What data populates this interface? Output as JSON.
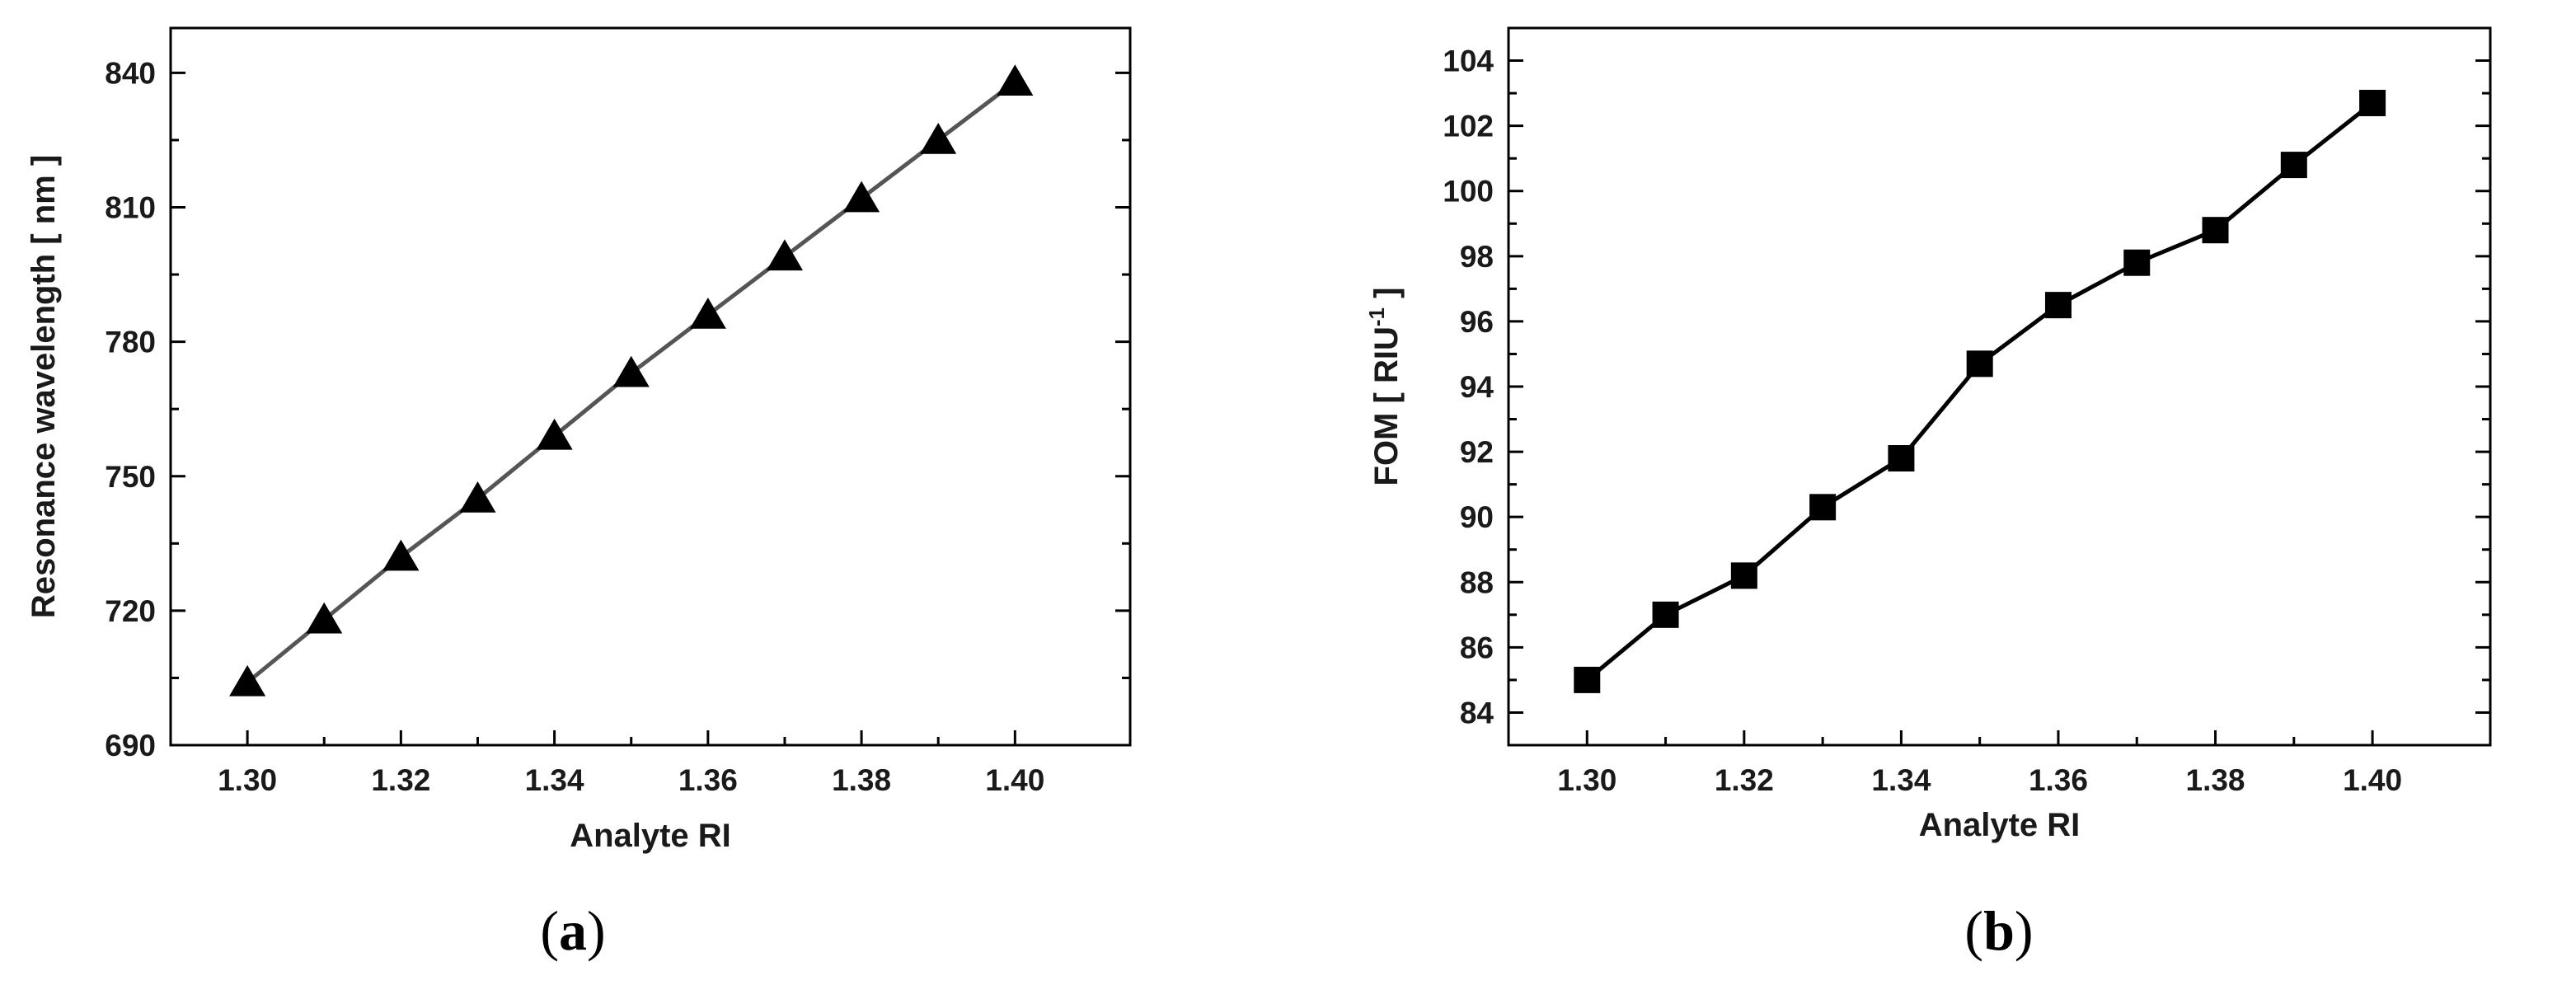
{
  "chart_data": [
    {
      "id": "a",
      "type": "line",
      "marker": "triangle",
      "panel_label": "a",
      "xlabel": "Analyte RI",
      "ylabel": "Resonance wavelength [ nm ]",
      "ylabel_sup": "",
      "ylabel_tail": "",
      "xlim": [
        1.29,
        1.415
      ],
      "ylim": [
        690,
        850
      ],
      "xticks": [
        1.3,
        1.32,
        1.34,
        1.36,
        1.38,
        1.4
      ],
      "xtick_labels": [
        "1.30",
        "1.32",
        "1.34",
        "1.36",
        "1.38",
        "1.40"
      ],
      "xminor": [
        1.31,
        1.33,
        1.35,
        1.37,
        1.39
      ],
      "yticks": [
        690,
        720,
        750,
        780,
        810,
        840
      ],
      "ytick_labels": [
        "690",
        "720",
        "750",
        "780",
        "810",
        "840"
      ],
      "yminor": [
        705,
        735,
        765,
        795,
        825
      ],
      "line_color": "#555555",
      "marker_color": "#000000",
      "x": [
        1.3,
        1.31,
        1.32,
        1.33,
        1.34,
        1.35,
        1.36,
        1.37,
        1.38,
        1.39,
        1.4
      ],
      "y": [
        704,
        718,
        732,
        745,
        759,
        773,
        786,
        799,
        812,
        825,
        838
      ]
    },
    {
      "id": "b",
      "type": "line",
      "marker": "square",
      "panel_label": "b",
      "xlabel": "Analyte RI",
      "ylabel": "FOM [ RIU",
      "ylabel_sup": "-1",
      "ylabel_tail": " ]",
      "xlim": [
        1.29,
        1.415
      ],
      "ylim": [
        83,
        105
      ],
      "xticks": [
        1.3,
        1.32,
        1.34,
        1.36,
        1.38,
        1.4
      ],
      "xtick_labels": [
        "1.30",
        "1.32",
        "1.34",
        "1.36",
        "1.38",
        "1.40"
      ],
      "xminor": [
        1.31,
        1.33,
        1.35,
        1.37,
        1.39
      ],
      "yticks": [
        84,
        86,
        88,
        90,
        92,
        94,
        96,
        98,
        100,
        102,
        104
      ],
      "ytick_labels": [
        "84",
        "86",
        "88",
        "90",
        "92",
        "94",
        "96",
        "98",
        "100",
        "102",
        "104"
      ],
      "yminor": [
        85,
        87,
        89,
        91,
        93,
        95,
        97,
        99,
        101,
        103
      ],
      "line_color": "#000000",
      "marker_color": "#000000",
      "x": [
        1.3,
        1.31,
        1.32,
        1.33,
        1.34,
        1.35,
        1.36,
        1.37,
        1.38,
        1.39,
        1.4
      ],
      "y": [
        85.0,
        87.0,
        88.2,
        90.3,
        91.8,
        94.7,
        96.5,
        97.8,
        98.8,
        100.8,
        102.7
      ]
    }
  ]
}
